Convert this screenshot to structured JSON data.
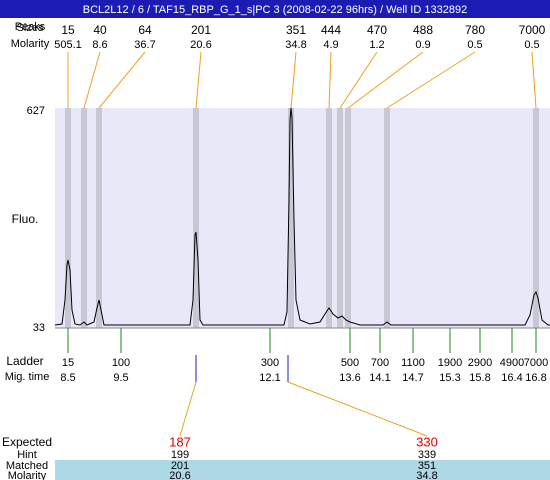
{
  "title": "BCL2L12 / 6 / TAF15_RBP_G_1_s|PC 3 (2008-02-22 96hrs) / Well ID 1332892",
  "peaks_label": "Peaks",
  "sizes_label": "Sizes",
  "molarity_label": "Molarity",
  "peaks": [
    {
      "size": 15,
      "molarity": 505.1
    },
    {
      "size": 40,
      "molarity": 8.6
    },
    {
      "size": 64,
      "molarity": 36.7
    },
    {
      "size": 201,
      "molarity": 20.6
    },
    {
      "size": 351,
      "molarity": 34.8
    },
    {
      "size": 444,
      "molarity": 4.9
    },
    {
      "size": 470,
      "molarity": 1.2
    },
    {
      "size": 488,
      "molarity": 0.9
    },
    {
      "size": 780,
      "molarity": 0.5
    },
    {
      "size": 7000,
      "molarity": 0.5
    }
  ],
  "y_axis": {
    "label": "Fluo.",
    "max": 627,
    "min": 33
  },
  "ladder_label": "Ladder",
  "mig_time_label": "Mig. time",
  "ladder": [
    {
      "size": 15,
      "mig_time": 8.5
    },
    {
      "size": 100,
      "mig_time": 9.5
    },
    {
      "size": 300,
      "mig_time": 12.1
    },
    {
      "size": 500,
      "mig_time": 13.6
    },
    {
      "size": 700,
      "mig_time": 14.1
    },
    {
      "size": 1100,
      "mig_time": 14.7
    },
    {
      "size": 1900,
      "mig_time": 15.3
    },
    {
      "size": 2900,
      "mig_time": 15.8
    },
    {
      "size": 4900,
      "mig_time": 16.4
    },
    {
      "size": 7000,
      "mig_time": 16.8
    }
  ],
  "table": {
    "expected_label": "Expected",
    "hint_label": "Hint",
    "matched_label": "Matched",
    "molarity_label": "Molarity",
    "expected": [
      187,
      330
    ],
    "hint": [
      199,
      339
    ],
    "matched": [
      201,
      351
    ],
    "molarity": [
      20.6,
      34.8
    ]
  }
}
